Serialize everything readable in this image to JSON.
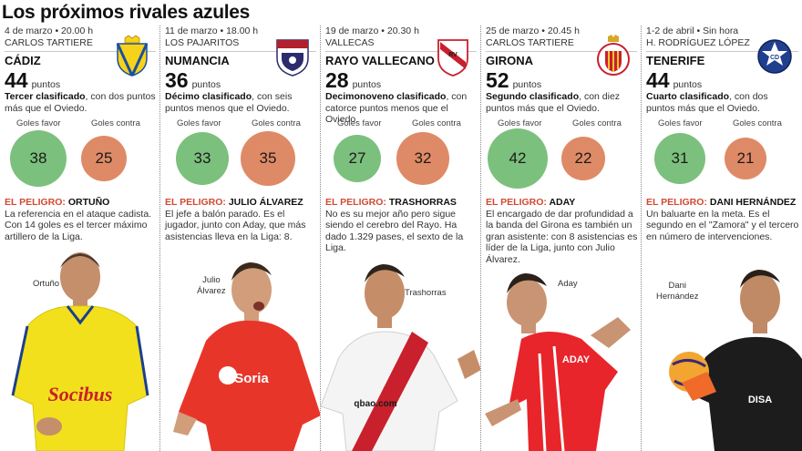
{
  "page": {
    "title": "Los próximos rivales azules"
  },
  "labels": {
    "points_unit": "puntos",
    "goals_for": "Goles favor",
    "goals_against": "Goles contra",
    "danger_prefix": "EL PELIGRO:"
  },
  "rivals": [
    {
      "when": "4 de marzo • 20.00 h",
      "venue": "CARLOS TARTIERE",
      "team": "CÁDIZ",
      "points": "44",
      "summary_bold": "Tercer clasificado",
      "summary_rest": ", con dos puntos más que el Oviedo.",
      "goals_for": 38,
      "goals_against": 25,
      "danger_name": "ORTUÑO",
      "danger_text": "La referencia en el ataque cadista. Con 14 goles es el tercer máximo artillero de la Liga.",
      "player_caption": "Ortuño",
      "crest_icon": "cadiz-crest-icon",
      "kit_color": "#f2e01c",
      "kit_text": "Socibus"
    },
    {
      "when": "11 de marzo • 18.00 h",
      "venue": "LOS PAJARITOS",
      "team": "NUMANCIA",
      "points": "36",
      "summary_bold": "Décimo clasificado",
      "summary_rest": ", con seis puntos menos que el Oviedo.",
      "goals_for": 33,
      "goals_against": 35,
      "danger_name": "JULIO ÁLVAREZ",
      "danger_text": "El jefe a balón parado. Es el jugador, junto con Aday, que más asistencias lleva en la Liga: 8.",
      "player_caption_1": "Julio",
      "player_caption_2": "Álvarez",
      "crest_icon": "numancia-crest-icon",
      "kit_color": "#e8352a",
      "kit_text": "Soria"
    },
    {
      "when": "19 de marzo • 20.30 h",
      "venue": "VALLECAS",
      "team": "RAYO VALLECANO",
      "points": "28",
      "summary_bold": "Decimonoveno clasificado",
      "summary_rest": ", con catorce puntos menos que el Oviedo.",
      "goals_for": 27,
      "goals_against": 32,
      "danger_name": "TRASHORRAS",
      "danger_text": "No es su mejor año pero sigue siendo el cerebro del Rayo. Ha dado 1.329 pases, el sexto de la Liga.",
      "player_caption": "Trashorras",
      "crest_icon": "rayo-crest-icon",
      "kit_color": "#f4f4f4",
      "kit_text": "qbao.com"
    },
    {
      "when": "25 de marzo • 20.45 h",
      "venue": "CARLOS TARTIERE",
      "team": "GIRONA",
      "points": "52",
      "summary_bold": "Segundo clasificado",
      "summary_rest": ", con diez puntos más que el Oviedo.",
      "goals_for": 42,
      "goals_against": 22,
      "danger_name": "ADAY",
      "danger_text": "El encargado de dar profundidad a la banda del Girona es también un gran asistente: con 8 asistencias es líder de la Liga, junto con Julio Álvarez.",
      "player_caption": "Aday",
      "crest_icon": "girona-crest-icon",
      "kit_color": "#e8252b",
      "kit_text": "ADAY"
    },
    {
      "when": "1-2 de abril • Sin hora",
      "venue": "H. RODRÍGUEZ LÓPEZ",
      "team": "TENERIFE",
      "points": "44",
      "summary_bold": "Cuarto clasificado",
      "summary_rest": ", con dos puntos más que el Oviedo.",
      "goals_for": 31,
      "goals_against": 21,
      "danger_name": "DANI HERNÁNDEZ",
      "danger_text": "Un baluarte en la meta. Es el segundo en el \"Zamora\" y el tercero en número de intervenciones.",
      "player_caption_1": "Dani",
      "player_caption_2": "Hernández",
      "crest_icon": "tenerife-crest-icon",
      "kit_color": "#1c1c1c",
      "kit_text": "DISA"
    }
  ]
}
